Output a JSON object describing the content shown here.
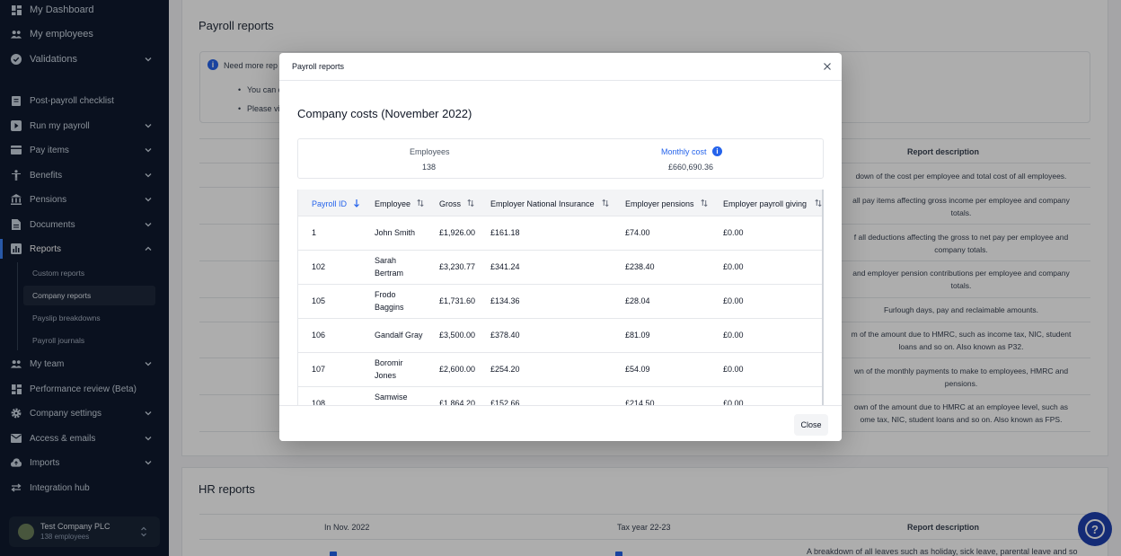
{
  "sidebar": {
    "items": [
      {
        "label": "My Dashboard",
        "icon": "dashboard-icon"
      },
      {
        "label": "My employees",
        "icon": "people-icon"
      },
      {
        "label": "Validations",
        "icon": "check-circle-icon"
      },
      {
        "label": "Post-payroll checklist",
        "icon": "clipboard-icon"
      },
      {
        "label": "Run my payroll",
        "icon": "play-circle-icon"
      },
      {
        "label": "Pay items",
        "icon": "card-icon"
      },
      {
        "label": "Benefits",
        "icon": "benefits-icon"
      },
      {
        "label": "Pensions",
        "icon": "bank-icon"
      },
      {
        "label": "Documents",
        "icon": "document-icon"
      },
      {
        "label": "Reports",
        "icon": "chart-icon"
      },
      {
        "label": "My team",
        "icon": "team-icon"
      },
      {
        "label": "Performance review (Beta)",
        "icon": "grid-icon"
      },
      {
        "label": "Company settings",
        "icon": "gear-icon"
      },
      {
        "label": "Access & emails",
        "icon": "mail-icon"
      },
      {
        "label": "Imports",
        "icon": "cloud-upload-icon"
      },
      {
        "label": "Integration hub",
        "icon": "swap-icon"
      }
    ],
    "report_sub_items": [
      "Custom reports",
      "Company reports",
      "Payslip breakdowns",
      "Payroll journals"
    ],
    "company": {
      "name": "Test Company PLC",
      "employees": "138 employees"
    }
  },
  "background": {
    "payroll_title": "Payroll reports",
    "info_heading": "Need more rep",
    "info_bullet_1": "You can d",
    "info_bullet_2": "Please vi",
    "report_description_header": "Report description",
    "descriptions": [
      "down of the cost per employee and total cost of all employees.",
      "all pay items affecting gross income per employee and company\ntotals.",
      "f all deductions affecting the gross to net pay per employee and\ncompany totals.",
      "and employer pension contributions per employee and company\ntotals.",
      "Furlough days, pay and reclaimable amounts.",
      "m of the amount due to HMRC, such as income tax, NIC, student\nloans and so on. Also known as P32.",
      "wn of the monthly payments to make to employees, HMRC and\npensions.",
      "own of the amount due to HMRC at an employee level, such as\nome tax, NIC, student loans and so on. Also known as FPS."
    ],
    "hr_title": "HR reports",
    "hr_headers": [
      "In Nov. 2022",
      "Tax year 22-23",
      "Report description"
    ],
    "hr_desc_partial": "A breakdown of all leaves such as holiday, sick leave, parental leave and so"
  },
  "modal": {
    "title": "Payroll reports",
    "heading": "Company costs (November 2022)",
    "summary": {
      "employees_label": "Employees",
      "employees_value": "138",
      "monthly_cost_label": "Monthly cost",
      "monthly_cost_value": "£660,690.36"
    },
    "columns": [
      "Payroll ID",
      "Employee",
      "Gross",
      "Employer National Insurance",
      "Employer pensions",
      "Employer payroll giving"
    ],
    "rows": [
      {
        "id": "1",
        "name": "John Smith",
        "gross": "£1,926.00",
        "ni": "£161.18",
        "pension": "£74.00",
        "giving": "£0.00"
      },
      {
        "id": "102",
        "name": "Sarah\nBertram",
        "gross": "£3,230.77",
        "ni": "£341.24",
        "pension": "£238.40",
        "giving": "£0.00"
      },
      {
        "id": "105",
        "name": "Frodo\nBaggins",
        "gross": "£1,731.60",
        "ni": "£134.36",
        "pension": "£28.04",
        "giving": "£0.00"
      },
      {
        "id": "106",
        "name": "Gandalf Gray",
        "gross": "£3,500.00",
        "ni": "£378.40",
        "pension": "£81.09",
        "giving": "£0.00"
      },
      {
        "id": "107",
        "name": "Boromir\nJones",
        "gross": "£2,600.00",
        "ni": "£254.20",
        "pension": "£54.09",
        "giving": "£0.00"
      },
      {
        "id": "108",
        "name": "Samwise\n",
        "gross": "£1,864.20",
        "ni": "£152.66",
        "pension": "£214.50",
        "giving": "£0.00"
      }
    ],
    "close_label": "Close"
  },
  "colors": {
    "sidebar_bg": "#0f1a2e",
    "accent": "#2563eb",
    "help_button": "#1e40af"
  }
}
